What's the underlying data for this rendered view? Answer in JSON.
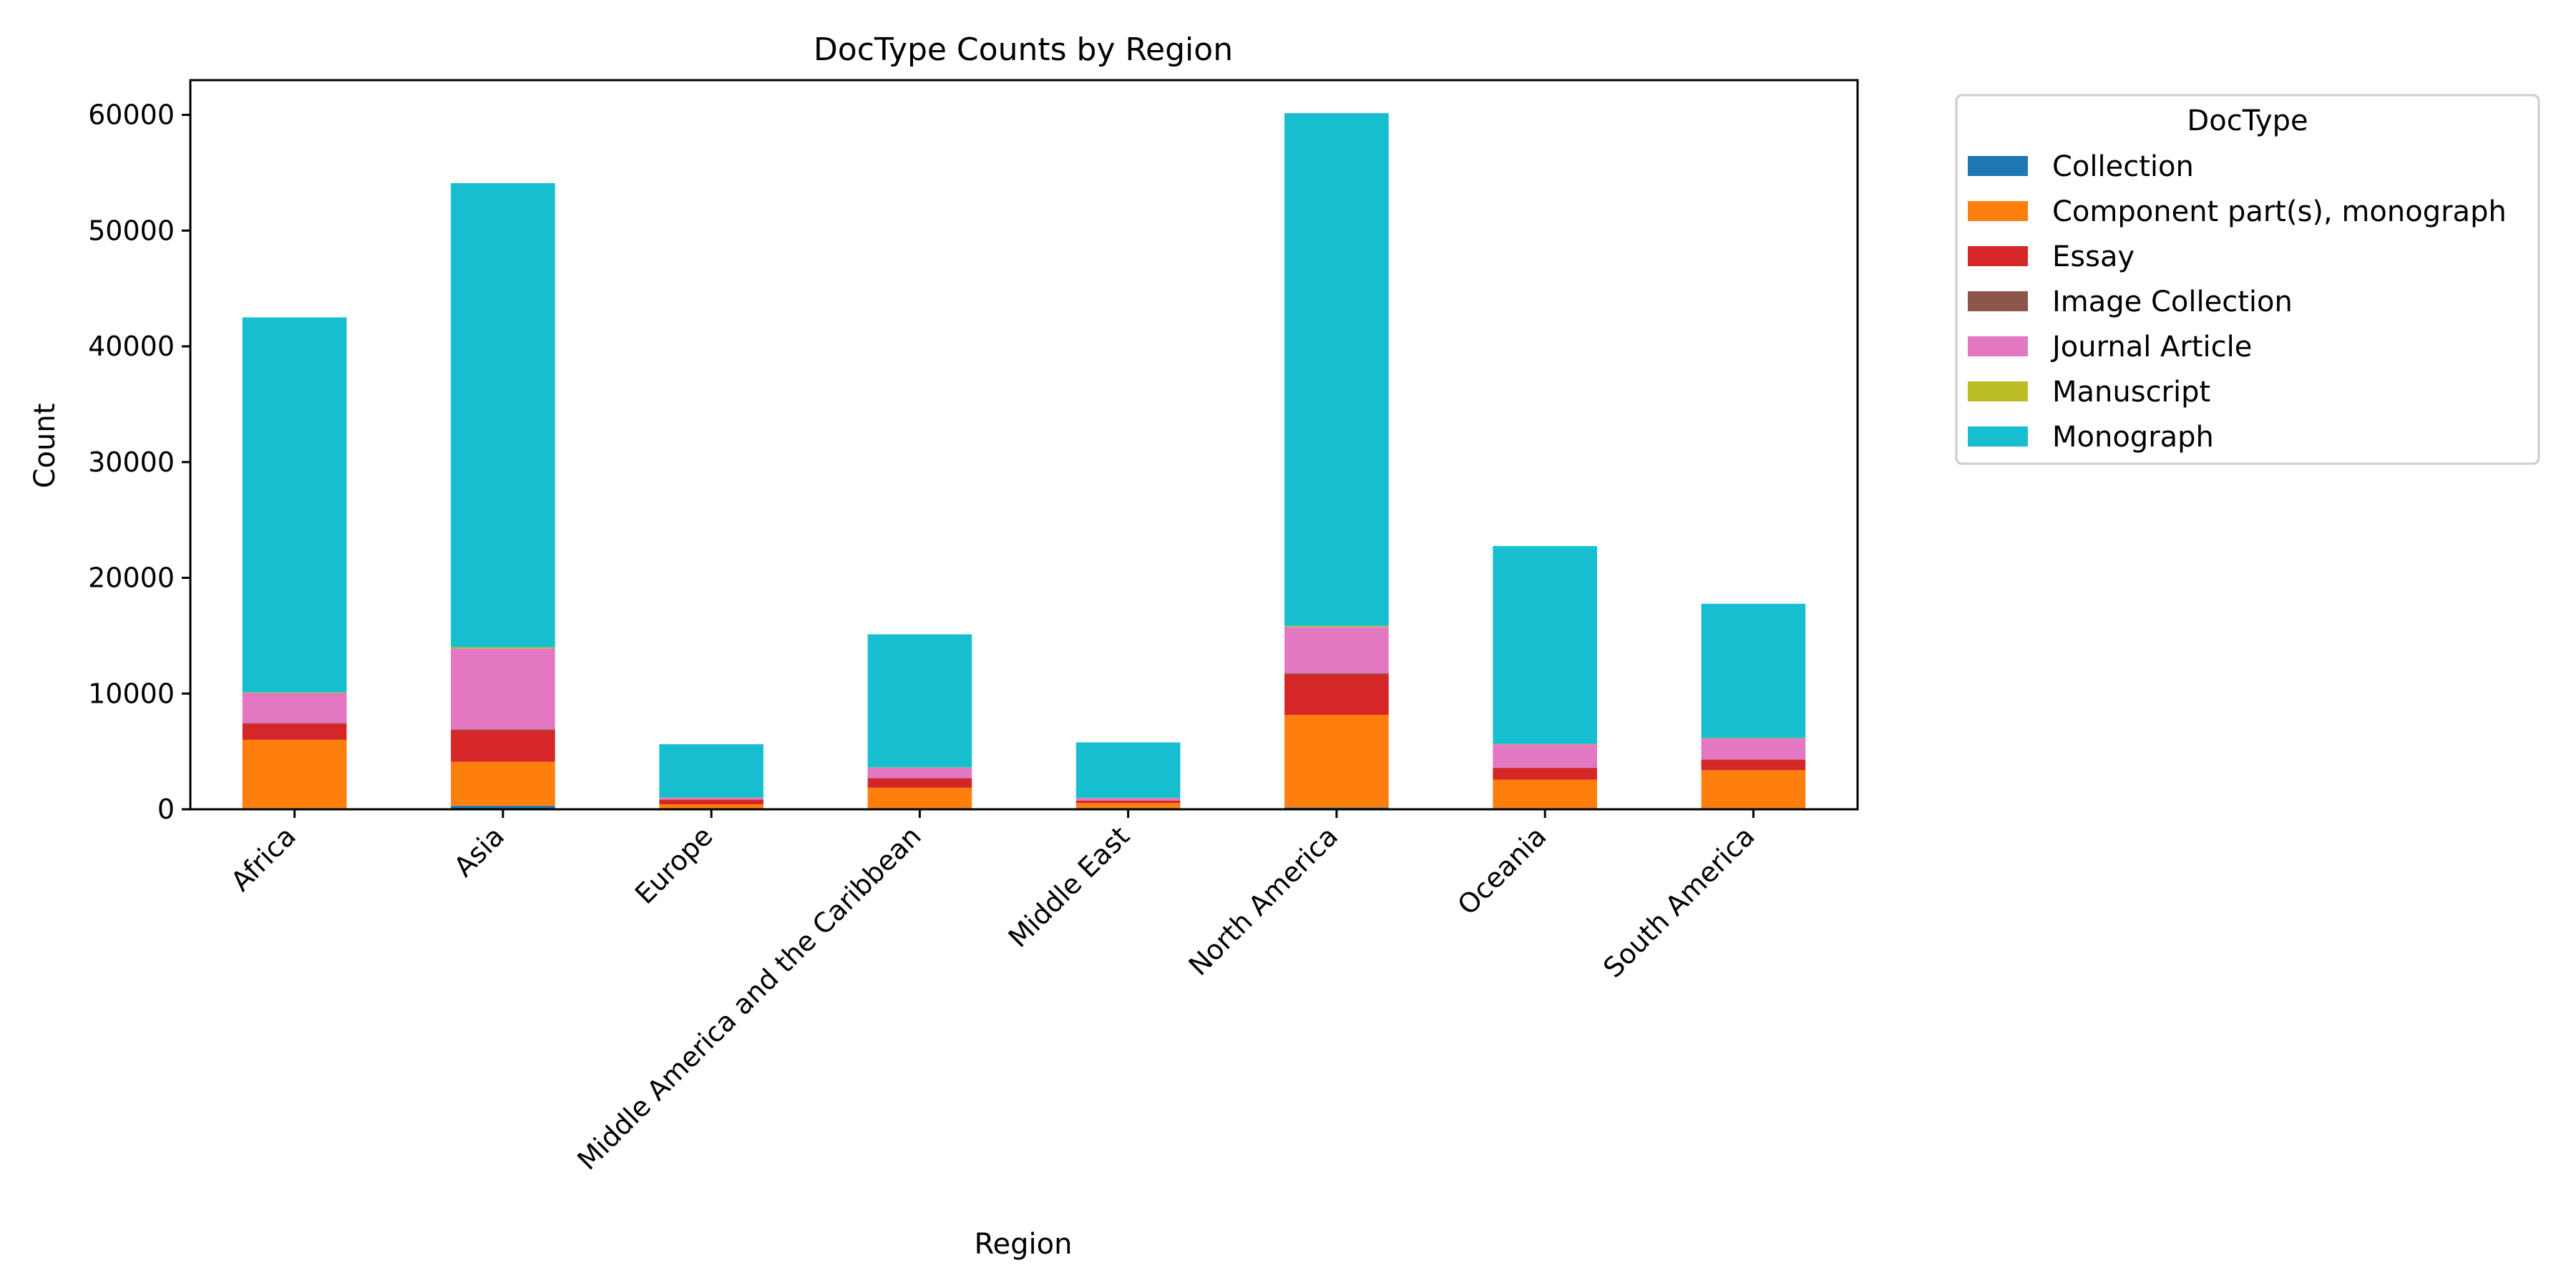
{
  "chart_data": {
    "type": "bar",
    "stacked": true,
    "title": "DocType Counts by Region",
    "xlabel": "Region",
    "ylabel": "Count",
    "ylim": [
      0,
      63000
    ],
    "yticks": [
      0,
      10000,
      20000,
      30000,
      40000,
      50000,
      60000
    ],
    "grid": false,
    "legend": {
      "title": "DocType",
      "placement": "outside-top-right"
    },
    "categories": [
      "Africa",
      "Asia",
      "Europe",
      "Middle America and the Caribbean",
      "Middle East",
      "North America",
      "Oceania",
      "South America"
    ],
    "series": [
      {
        "name": "Collection",
        "color": "#1f77b4",
        "values": [
          100,
          300,
          30,
          60,
          40,
          150,
          60,
          80
        ]
      },
      {
        "name": "Component part(s), monograph",
        "color": "#ff7f0e",
        "values": [
          5900,
          3800,
          400,
          1800,
          500,
          8000,
          2500,
          3300
        ]
      },
      {
        "name": "Essay",
        "color": "#d62728",
        "values": [
          1400,
          2700,
          400,
          800,
          200,
          3500,
          1000,
          900
        ]
      },
      {
        "name": "Image Collection",
        "color": "#8c564b",
        "values": [
          50,
          100,
          20,
          30,
          20,
          100,
          40,
          40
        ]
      },
      {
        "name": "Journal Article",
        "color": "#e377c2",
        "values": [
          2600,
          7000,
          150,
          900,
          200,
          4000,
          2000,
          1800
        ]
      },
      {
        "name": "Manuscript",
        "color": "#bcbd22",
        "values": [
          50,
          100,
          20,
          30,
          20,
          100,
          40,
          40
        ]
      },
      {
        "name": "Monograph",
        "color": "#17becf",
        "values": [
          32400,
          40100,
          4600,
          11500,
          4800,
          44300,
          17100,
          11600
        ]
      }
    ]
  }
}
